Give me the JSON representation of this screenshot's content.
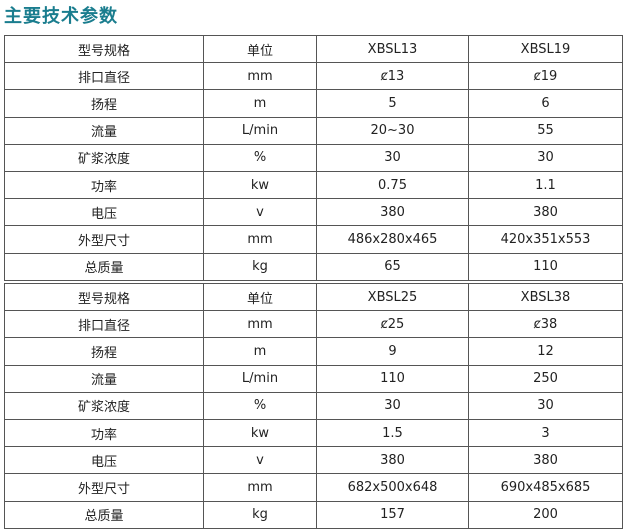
{
  "title": "主要技术参数",
  "tables": [
    {
      "rows": [
        [
          "型号规格",
          "单位",
          "XBSL13",
          "XBSL19"
        ],
        [
          "排口直径",
          "mm",
          "ȼ13",
          "ȼ19"
        ],
        [
          "扬程",
          "m",
          "5",
          "6"
        ],
        [
          "流量",
          "L/min",
          "20~30",
          "55"
        ],
        [
          "矿浆浓度",
          "%",
          "30",
          "30"
        ],
        [
          "功率",
          "kw",
          "0.75",
          "1.1"
        ],
        [
          "电压",
          "v",
          "380",
          "380"
        ],
        [
          "外型尺寸",
          "mm",
          "486x280x465",
          "420x351x553"
        ],
        [
          "总质量",
          "kg",
          "65",
          "110"
        ]
      ]
    },
    {
      "rows": [
        [
          "型号规格",
          "单位",
          "XBSL25",
          "XBSL38"
        ],
        [
          "排口直径",
          "mm",
          "ȼ25",
          "ȼ38"
        ],
        [
          "扬程",
          "m",
          "9",
          "12"
        ],
        [
          "流量",
          "L/min",
          "110",
          "250"
        ],
        [
          "矿浆浓度",
          "%",
          "30",
          "30"
        ],
        [
          "功率",
          "kw",
          "1.5",
          "3"
        ],
        [
          "电压",
          "v",
          "380",
          "380"
        ],
        [
          "外型尺寸",
          "mm",
          "682x500x648",
          "690x485x685"
        ],
        [
          "总质量",
          "kg",
          "157",
          "200"
        ]
      ]
    }
  ],
  "colors": {
    "title": "#1a7d8e",
    "border": "#555555"
  }
}
